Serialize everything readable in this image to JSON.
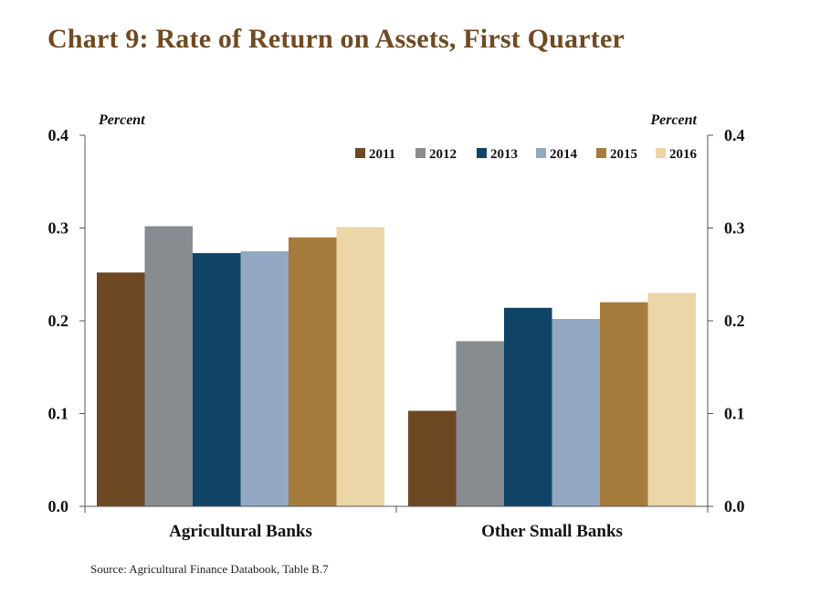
{
  "title": "Chart 9: Rate of Return on Assets, First Quarter",
  "source": "Source: Agricultural Finance Databook, Table B.7",
  "chart_data": {
    "type": "bar",
    "categories": [
      "Agricultural Banks",
      "Other Small Banks"
    ],
    "series": [
      {
        "name": "2011",
        "values": [
          0.252,
          0.103
        ],
        "color": "#6e4723"
      },
      {
        "name": "2012",
        "values": [
          0.302,
          0.178
        ],
        "color": "#878c91"
      },
      {
        "name": "2013",
        "values": [
          0.273,
          0.214
        ],
        "color": "#0f4466"
      },
      {
        "name": "2014",
        "values": [
          0.275,
          0.202
        ],
        "color": "#93a8c3"
      },
      {
        "name": "2015",
        "values": [
          0.29,
          0.22
        ],
        "color": "#a57c3c"
      },
      {
        "name": "2016",
        "values": [
          0.301,
          0.23
        ],
        "color": "#ecd5a6"
      }
    ],
    "ylabel_left": "Percent",
    "ylabel_right": "Percent",
    "ylim": [
      0,
      0.4
    ],
    "yticks": [
      "0.0",
      "0.1",
      "0.2",
      "0.3",
      "0.4"
    ],
    "grid": false,
    "legend_position": "top-right",
    "dual_y_axis": true
  }
}
